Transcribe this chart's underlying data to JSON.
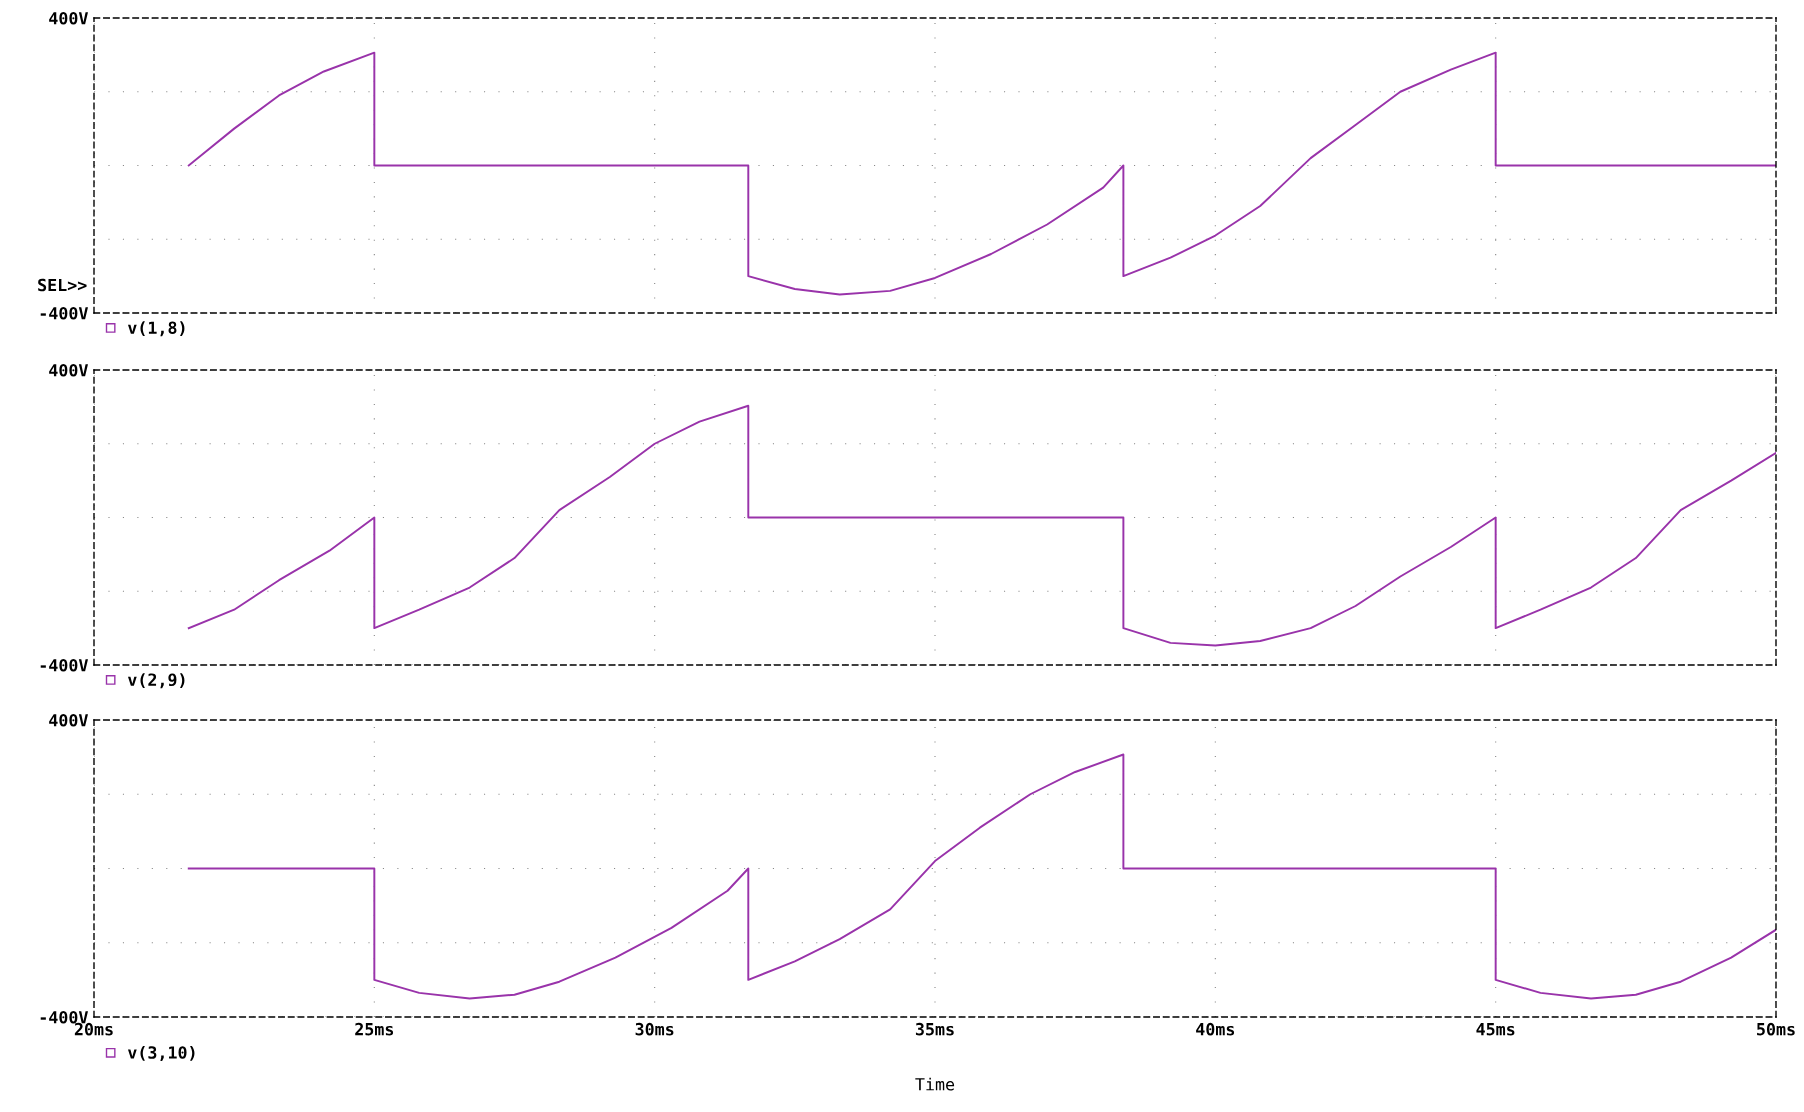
{
  "chart_data": [
    {
      "type": "line",
      "xlim": [
        20,
        50
      ],
      "ylim": [
        -400,
        400
      ],
      "tick_labels": "y",
      "grid": true,
      "legend": "bottom left",
      "line_style": "solid",
      "marker": "none",
      "annotations": [
        "SEL>>"
      ],
      "xticks": [
        20,
        25,
        30,
        35,
        40,
        45,
        50
      ],
      "yticks": [
        {
          "value": -400,
          "label": "-400V"
        },
        {
          "value": -200,
          "label": null
        },
        {
          "value": 0,
          "label": null
        },
        {
          "value": 200,
          "label": null
        },
        {
          "value": 400,
          "label": "400V"
        }
      ],
      "series": [
        {
          "name": "v(1,8)",
          "color": "#9933aa",
          "x": [
            21.69,
            22.5,
            23.3,
            24.1,
            25,
            25,
            31.67,
            31.67,
            32.5,
            33.3,
            34.2,
            35,
            36,
            37,
            38,
            38.36,
            38.36,
            39.2,
            40,
            40.8,
            41.7,
            42.5,
            43.3,
            44.2,
            45,
            45,
            50
          ],
          "values": [
            0,
            100,
            190,
            255,
            306,
            0,
            0,
            -300,
            -335,
            -350,
            -340,
            -305,
            -240,
            -160,
            -60,
            0,
            -300,
            -250,
            -190,
            -110,
            20,
            110,
            200,
            260,
            306,
            0,
            0
          ]
        }
      ]
    },
    {
      "type": "line",
      "xlim": [
        20,
        50
      ],
      "ylim": [
        -400,
        400
      ],
      "tick_labels": "y",
      "grid": true,
      "legend": "bottom left",
      "line_style": "solid",
      "marker": "none",
      "xticks": [
        20,
        25,
        30,
        35,
        40,
        45,
        50
      ],
      "yticks": [
        {
          "value": -400,
          "label": "-400V"
        },
        {
          "value": -200,
          "label": null
        },
        {
          "value": 0,
          "label": null
        },
        {
          "value": 200,
          "label": null
        },
        {
          "value": 400,
          "label": "400V"
        }
      ],
      "series": [
        {
          "name": "v(2,9)",
          "color": "#9933aa",
          "x": [
            21.69,
            22.5,
            23.3,
            24.2,
            25,
            25,
            25.8,
            26.7,
            27.5,
            28.3,
            29.2,
            30,
            30.8,
            31.67,
            31.67,
            38.36,
            38.36,
            39.2,
            40,
            40.8,
            41.7,
            42.5,
            43.3,
            44.2,
            45,
            45,
            45.8,
            46.7,
            47.5,
            48.3,
            49.2,
            50
          ],
          "values": [
            -300,
            -250,
            -170,
            -90,
            0,
            -300,
            -250,
            -190,
            -110,
            20,
            110,
            200,
            260,
            303,
            0,
            0,
            -300,
            -340,
            -347,
            -335,
            -300,
            -240,
            -160,
            -80,
            0,
            -300,
            -250,
            -190,
            -110,
            20,
            100,
            175
          ]
        }
      ]
    },
    {
      "type": "line",
      "xlim": [
        20,
        50
      ],
      "ylim": [
        -400,
        400
      ],
      "grid": true,
      "legend": "bottom left",
      "line_style": "solid",
      "marker": "none",
      "xlabel": "Time",
      "xticks": [
        {
          "value": 20,
          "label": "20ms"
        },
        {
          "value": 25,
          "label": "25ms"
        },
        {
          "value": 30,
          "label": "30ms"
        },
        {
          "value": 35,
          "label": "35ms"
        },
        {
          "value": 40,
          "label": "40ms"
        },
        {
          "value": 45,
          "label": "45ms"
        },
        {
          "value": 50,
          "label": "50ms"
        }
      ],
      "yticks": [
        {
          "value": -400,
          "label": "-400V"
        },
        {
          "value": -200,
          "label": null
        },
        {
          "value": 0,
          "label": null
        },
        {
          "value": 200,
          "label": null
        },
        {
          "value": 400,
          "label": "400V"
        }
      ],
      "series": [
        {
          "name": "v(3,10)",
          "color": "#9933aa",
          "x": [
            21.69,
            25,
            25,
            25.8,
            26.7,
            27.5,
            28.3,
            29.3,
            30.3,
            31.3,
            31.67,
            31.67,
            32.5,
            33.3,
            34.2,
            35,
            35.8,
            36.7,
            37.5,
            38.36,
            38.36,
            45,
            45,
            45.8,
            46.7,
            47.5,
            48.3,
            49.2,
            50
          ],
          "values": [
            0,
            0,
            -300,
            -335,
            -350,
            -340,
            -305,
            -240,
            -160,
            -60,
            0,
            -300,
            -250,
            -190,
            -110,
            20,
            110,
            200,
            260,
            307,
            0,
            0,
            -300,
            -335,
            -350,
            -340,
            -305,
            -240,
            -165
          ]
        }
      ]
    }
  ]
}
